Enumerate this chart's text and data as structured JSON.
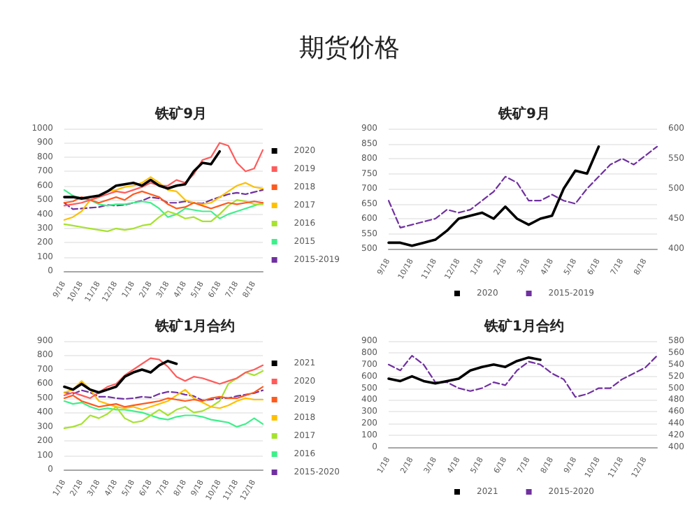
{
  "chart_data": [
    {
      "type": "line",
      "title": "铁矿9月",
      "annotations": [
        "期货价格"
      ],
      "grid": "y",
      "legend": "right",
      "marker": "none",
      "ylim": [
        0,
        1000
      ],
      "yticks": [
        0,
        100,
        200,
        300,
        400,
        500,
        600,
        700,
        800,
        900,
        1000
      ],
      "categories": [
        "9/18",
        null,
        "10/18",
        null,
        "11/18",
        null,
        "12/18",
        null,
        "1/18",
        null,
        "2/18",
        null,
        "3/18",
        null,
        "4/18",
        null,
        "5/18",
        null,
        "6/18",
        null,
        "7/18",
        null,
        "8/18",
        null
      ],
      "series": [
        {
          "name": "2020",
          "color": "#000000",
          "values": [
            520,
            520,
            510,
            520,
            530,
            560,
            600,
            610,
            620,
            600,
            640,
            600,
            580,
            600,
            610,
            700,
            760,
            750,
            840,
            null,
            null,
            null,
            null,
            null
          ]
        },
        {
          "name": "2019",
          "color": "#ff5b5b",
          "values": [
            460,
            470,
            480,
            500,
            520,
            540,
            560,
            550,
            570,
            590,
            620,
            600,
            600,
            640,
            620,
            680,
            780,
            800,
            900,
            880,
            760,
            700,
            720,
            850
          ]
        },
        {
          "name": "2018",
          "color": "#ff5a1e",
          "values": [
            480,
            490,
            520,
            500,
            480,
            500,
            520,
            500,
            540,
            560,
            540,
            520,
            470,
            440,
            450,
            480,
            460,
            440,
            460,
            480,
            470,
            480,
            490,
            480
          ]
        },
        {
          "name": "2017",
          "color": "#ffc000",
          "values": [
            360,
            380,
            420,
            500,
            520,
            560,
            570,
            590,
            600,
            620,
            660,
            620,
            570,
            560,
            500,
            480,
            470,
            480,
            520,
            560,
            600,
            620,
            590,
            580
          ]
        },
        {
          "name": "2016",
          "color": "#a6e22e",
          "values": [
            330,
            320,
            310,
            300,
            290,
            280,
            300,
            290,
            300,
            320,
            330,
            380,
            420,
            400,
            370,
            380,
            350,
            350,
            400,
            460,
            500,
            490,
            470,
            470
          ]
        },
        {
          "name": "2015",
          "color": "#3ef08a",
          "values": [
            570,
            530,
            510,
            500,
            470,
            460,
            470,
            470,
            480,
            490,
            480,
            440,
            380,
            400,
            440,
            430,
            420,
            420,
            370,
            400,
            420,
            440,
            460,
            480
          ]
        },
        {
          "name": "2015-2019",
          "color": "#7030a0",
          "line_style": "dashed",
          "values": [
            480,
            435,
            440,
            445,
            450,
            465,
            460,
            465,
            480,
            495,
            520,
            510,
            480,
            480,
            490,
            480,
            475,
            500,
            520,
            540,
            550,
            540,
            555,
            570
          ]
        }
      ]
    },
    {
      "type": "line",
      "title": "铁矿9月",
      "grid": "y",
      "legend": "bottom",
      "marker": "none",
      "ylim": [
        500,
        900
      ],
      "yticks": [
        500,
        550,
        600,
        650,
        700,
        750,
        800,
        850,
        900
      ],
      "y2lim": [
        400,
        600
      ],
      "y2ticks": [
        400,
        450,
        500,
        550,
        600
      ],
      "categories": [
        "9/18",
        null,
        "10/18",
        null,
        "11/18",
        null,
        "12/18",
        null,
        "1/18",
        null,
        "2/18",
        null,
        "3/18",
        null,
        "4/18",
        null,
        "5/18",
        null,
        "6/18",
        null,
        "7/18",
        null,
        "8/18",
        null
      ],
      "series": [
        {
          "name": "2020",
          "color": "#000000",
          "values": [
            520,
            520,
            510,
            520,
            530,
            560,
            600,
            610,
            620,
            600,
            640,
            600,
            580,
            600,
            610,
            700,
            760,
            750,
            840,
            null,
            null,
            null,
            null,
            null
          ]
        },
        {
          "name": "2015-2019",
          "color": "#7030a0",
          "line_style": "dashed",
          "axis": "y2",
          "values": [
            480,
            435,
            440,
            445,
            450,
            465,
            460,
            465,
            480,
            495,
            520,
            510,
            480,
            480,
            490,
            480,
            475,
            500,
            520,
            540,
            550,
            540,
            555,
            570
          ]
        }
      ]
    },
    {
      "type": "line",
      "title": "铁矿1月合约",
      "grid": "y",
      "legend": "right",
      "marker": "none",
      "ylim": [
        0,
        900
      ],
      "yticks": [
        0,
        100,
        200,
        300,
        400,
        500,
        600,
        700,
        800,
        900
      ],
      "categories": [
        "1/18",
        null,
        "2/18",
        null,
        "3/18",
        null,
        "4/18",
        null,
        "5/18",
        null,
        "6/18",
        null,
        "7/18",
        null,
        "8/18",
        null,
        "9/18",
        null,
        "10/18",
        null,
        "11/18",
        null,
        "12/18",
        null
      ],
      "series": [
        {
          "name": "2021",
          "color": "#000000",
          "values": [
            580,
            560,
            600,
            560,
            540,
            560,
            580,
            650,
            680,
            700,
            680,
            730,
            760,
            740,
            null,
            null,
            null,
            null,
            null,
            null,
            null,
            null,
            null,
            null
          ]
        },
        {
          "name": "2020",
          "color": "#ff5b5b",
          "values": [
            520,
            540,
            520,
            500,
            540,
            580,
            600,
            660,
            700,
            740,
            780,
            770,
            720,
            650,
            620,
            650,
            640,
            620,
            600,
            620,
            640,
            680,
            700,
            730
          ]
        },
        {
          "name": "2019",
          "color": "#ff5a1e",
          "values": [
            500,
            520,
            480,
            460,
            440,
            450,
            460,
            440,
            450,
            460,
            470,
            480,
            500,
            490,
            480,
            490,
            480,
            500,
            510,
            500,
            500,
            520,
            540,
            580
          ]
        },
        {
          "name": "2018",
          "color": "#ffc000",
          "values": [
            540,
            560,
            620,
            560,
            480,
            460,
            440,
            430,
            440,
            420,
            440,
            460,
            480,
            520,
            560,
            500,
            470,
            440,
            430,
            450,
            480,
            500,
            490,
            490
          ]
        },
        {
          "name": "2017",
          "color": "#a6e22e",
          "values": [
            290,
            300,
            320,
            380,
            360,
            390,
            440,
            360,
            330,
            340,
            380,
            420,
            380,
            420,
            440,
            400,
            410,
            440,
            480,
            600,
            640,
            680,
            660,
            690
          ]
        },
        {
          "name": "2016",
          "color": "#3ef08a",
          "values": [
            480,
            460,
            470,
            440,
            420,
            430,
            420,
            420,
            410,
            400,
            380,
            360,
            350,
            370,
            380,
            380,
            370,
            350,
            340,
            330,
            300,
            320,
            360,
            320
          ]
        },
        {
          "name": "2015-2020",
          "color": "#7030a0",
          "line_style": "dashed",
          "values": [
            540,
            530,
            555,
            540,
            510,
            510,
            500,
            495,
            500,
            510,
            505,
            530,
            545,
            540,
            525,
            515,
            485,
            490,
            500,
            500,
            515,
            525,
            535,
            555
          ]
        }
      ]
    },
    {
      "type": "line",
      "title": "铁矿1月合约",
      "grid": "y",
      "legend": "bottom",
      "marker": "none",
      "ylim": [
        0,
        900
      ],
      "yticks": [
        0,
        100,
        200,
        300,
        400,
        500,
        600,
        700,
        800,
        900
      ],
      "y2lim": [
        400,
        580
      ],
      "y2ticks": [
        400,
        420,
        440,
        460,
        480,
        500,
        520,
        540,
        560,
        580
      ],
      "categories": [
        "1/18",
        null,
        "2/18",
        null,
        "3/18",
        null,
        "4/18",
        null,
        "5/18",
        null,
        "6/18",
        null,
        "7/18",
        null,
        "8/18",
        null,
        "9/18",
        null,
        "10/18",
        null,
        "11/18",
        null,
        "12/18",
        null
      ],
      "series": [
        {
          "name": "2021",
          "color": "#000000",
          "values": [
            580,
            560,
            600,
            560,
            540,
            560,
            580,
            650,
            680,
            700,
            680,
            730,
            760,
            740,
            null,
            null,
            null,
            null,
            null,
            null,
            null,
            null,
            null,
            null
          ]
        },
        {
          "name": "2015-2020",
          "color": "#7030a0",
          "line_style": "dashed",
          "axis": "y2",
          "values": [
            540,
            530,
            555,
            540,
            510,
            510,
            500,
            495,
            500,
            510,
            505,
            530,
            545,
            540,
            525,
            515,
            485,
            490,
            500,
            500,
            515,
            525,
            535,
            555
          ]
        }
      ]
    }
  ]
}
